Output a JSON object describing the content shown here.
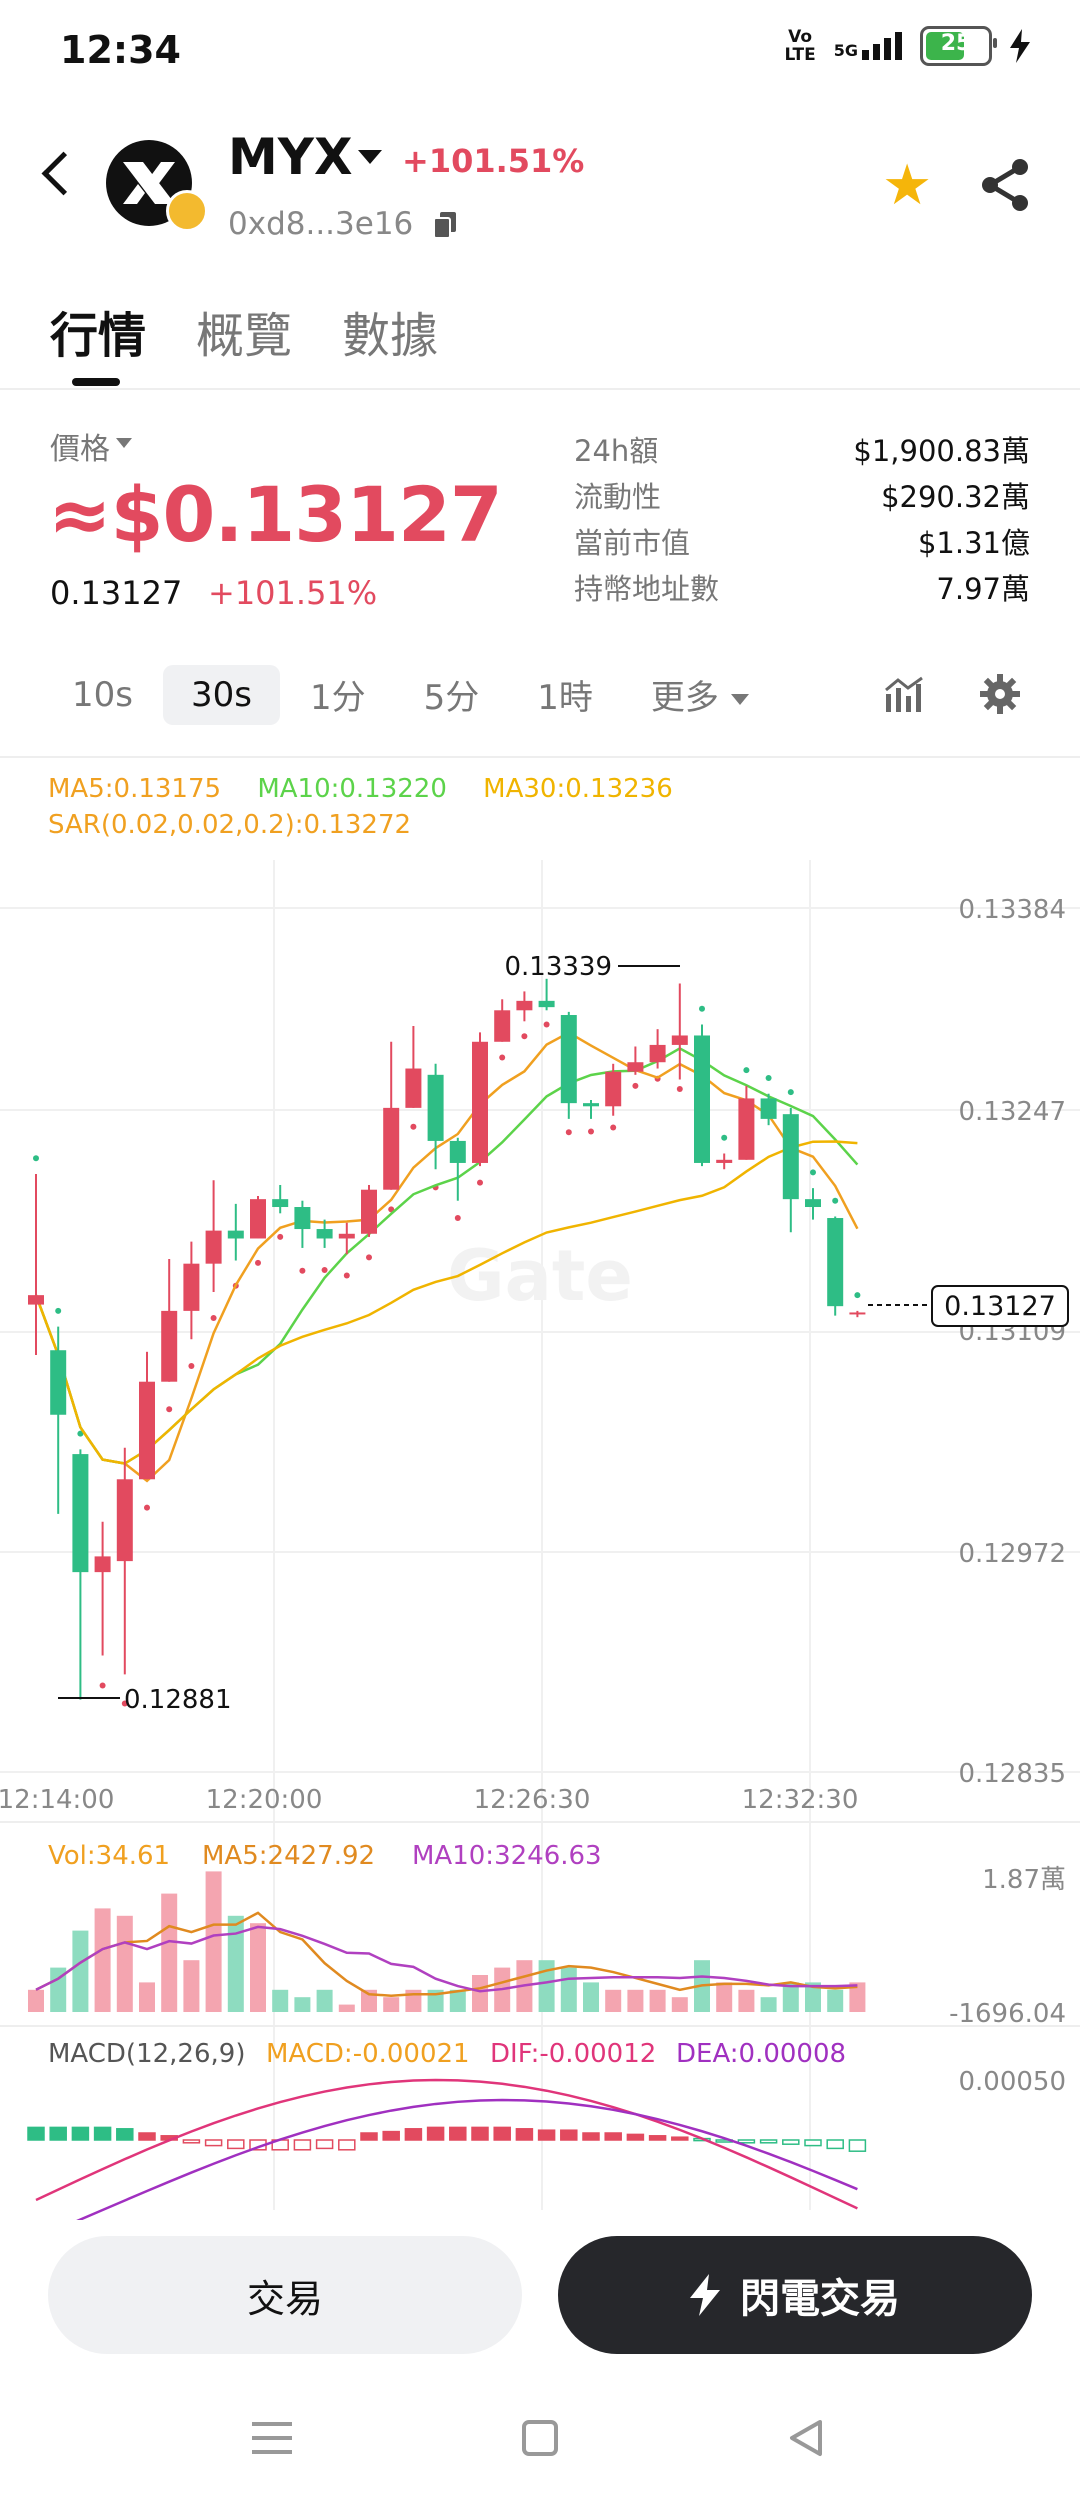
{
  "status": {
    "time": "12:34",
    "volte": "Vo\nLTE",
    "net": "5G",
    "battery": "25"
  },
  "header": {
    "symbol": "MYX",
    "change": "+101.51%",
    "address": "0xd8...3e16"
  },
  "tabs": [
    "行情",
    "概覽",
    "數據"
  ],
  "price": {
    "label": "價格",
    "big": "≈$0.13127",
    "raw": "0.13127",
    "change": "+101.51%"
  },
  "stats": [
    {
      "k": "24h額",
      "v": "$1,900.83萬"
    },
    {
      "k": "流動性",
      "v": "$290.32萬"
    },
    {
      "k": "當前市值",
      "v": "$1.31億"
    },
    {
      "k": "持幣地址數",
      "v": "7.97萬"
    }
  ],
  "timeframes": [
    "10s",
    "30s",
    "1分",
    "5分",
    "1時",
    "更多"
  ],
  "indicators": {
    "ma5": "MA5:0.13175",
    "ma10": "MA10:0.13220",
    "ma30": "MA30:0.13236",
    "sar": "SAR(0.02,0.02,0.2):0.13272"
  },
  "colors": {
    "up": "#e24a5f",
    "down": "#2ebd85",
    "ma5": "#f0a020",
    "ma10": "#5cd34a",
    "ma30": "#f0b400",
    "sar": "#e24a5f",
    "accent_star": "#f5b50a"
  },
  "chart_data": {
    "type": "candlestick",
    "watermark": "Gate",
    "y_ticks": [
      "0.13384",
      "0.13247",
      "0.13109",
      "0.12972",
      "0.12835"
    ],
    "x_ticks": [
      "12:14:00",
      "12:20:00",
      "12:26:30",
      "12:32:30"
    ],
    "last_price_tag": "0.13127",
    "high_label": "0.13339",
    "low_label": "0.12881",
    "candles": [
      {
        "o": 0.13132,
        "c": 0.13138,
        "h": 0.13215,
        "l": 0.131
      },
      {
        "o": 0.13103,
        "c": 0.13062,
        "h": 0.13118,
        "l": 0.12999
      },
      {
        "o": 0.13037,
        "c": 0.12962,
        "h": 0.1304,
        "l": 0.12881
      },
      {
        "o": 0.12962,
        "c": 0.12972,
        "h": 0.12994,
        "l": 0.12909
      },
      {
        "o": 0.12969,
        "c": 0.13021,
        "h": 0.13041,
        "l": 0.12897
      },
      {
        "o": 0.13021,
        "c": 0.13083,
        "h": 0.13102,
        "l": 0.13021
      },
      {
        "o": 0.13083,
        "c": 0.13128,
        "h": 0.13161,
        "l": 0.13083
      },
      {
        "o": 0.13128,
        "c": 0.13158,
        "h": 0.13172,
        "l": 0.1311
      },
      {
        "o": 0.13158,
        "c": 0.13179,
        "h": 0.13211,
        "l": 0.1314
      },
      {
        "o": 0.13179,
        "c": 0.13174,
        "h": 0.13196,
        "l": 0.1316
      },
      {
        "o": 0.13174,
        "c": 0.13199,
        "h": 0.13201,
        "l": 0.13174
      },
      {
        "o": 0.13199,
        "c": 0.13194,
        "h": 0.13208,
        "l": 0.1319
      },
      {
        "o": 0.13194,
        "c": 0.1318,
        "h": 0.13198,
        "l": 0.13168
      },
      {
        "o": 0.1318,
        "c": 0.13174,
        "h": 0.13186,
        "l": 0.13168
      },
      {
        "o": 0.13174,
        "c": 0.13177,
        "h": 0.13184,
        "l": 0.13164
      },
      {
        "o": 0.13177,
        "c": 0.13205,
        "h": 0.13208,
        "l": 0.13175
      },
      {
        "o": 0.13205,
        "c": 0.13257,
        "h": 0.13299,
        "l": 0.13205
      },
      {
        "o": 0.13257,
        "c": 0.13282,
        "h": 0.13309,
        "l": 0.13257
      },
      {
        "o": 0.13278,
        "c": 0.13236,
        "h": 0.13285,
        "l": 0.13218
      },
      {
        "o": 0.13236,
        "c": 0.13222,
        "h": 0.13238,
        "l": 0.13198
      },
      {
        "o": 0.13222,
        "c": 0.13299,
        "h": 0.13305,
        "l": 0.1322
      },
      {
        "o": 0.13299,
        "c": 0.13319,
        "h": 0.13326,
        "l": 0.13299
      },
      {
        "o": 0.13319,
        "c": 0.13325,
        "h": 0.13331,
        "l": 0.13312
      },
      {
        "o": 0.13325,
        "c": 0.13321,
        "h": 0.13339,
        "l": 0.13319
      },
      {
        "o": 0.13316,
        "c": 0.1326,
        "h": 0.13318,
        "l": 0.1325
      },
      {
        "o": 0.1326,
        "c": 0.13258,
        "h": 0.13262,
        "l": 0.1325
      },
      {
        "o": 0.13258,
        "c": 0.1328,
        "h": 0.13285,
        "l": 0.13252
      },
      {
        "o": 0.1328,
        "c": 0.13286,
        "h": 0.13296,
        "l": 0.13278
      },
      {
        "o": 0.13286,
        "c": 0.13297,
        "h": 0.13307,
        "l": 0.13282
      },
      {
        "o": 0.13297,
        "c": 0.13303,
        "h": 0.13336,
        "l": 0.13275
      },
      {
        "o": 0.13303,
        "c": 0.13222,
        "h": 0.1331,
        "l": 0.1322
      },
      {
        "o": 0.13222,
        "c": 0.13224,
        "h": 0.13228,
        "l": 0.13218
      },
      {
        "o": 0.13224,
        "c": 0.13263,
        "h": 0.13271,
        "l": 0.13224
      },
      {
        "o": 0.13263,
        "c": 0.1325,
        "h": 0.13266,
        "l": 0.13246
      },
      {
        "o": 0.13253,
        "c": 0.13199,
        "h": 0.13257,
        "l": 0.13178
      },
      {
        "o": 0.13199,
        "c": 0.13194,
        "h": 0.13206,
        "l": 0.13186
      },
      {
        "o": 0.13187,
        "c": 0.13131,
        "h": 0.13188,
        "l": 0.13125
      },
      {
        "o": 0.13127,
        "c": 0.13127,
        "h": 0.13128,
        "l": 0.13124
      }
    ],
    "volume_panel": {
      "vol": "Vol:34.61",
      "ma5": "MA5:2427.92",
      "ma10": "MA10:3246.63",
      "y_top": "1.87萬",
      "y_bottom": "-1696.04",
      "values": [
        3,
        6,
        11,
        14,
        13,
        4,
        16,
        7,
        19,
        13,
        12,
        3,
        2,
        3,
        1,
        3,
        2,
        3,
        3,
        3,
        5,
        6,
        7,
        7,
        6,
        4,
        3,
        3,
        3,
        2,
        7,
        4,
        3,
        2,
        4,
        4,
        3,
        4
      ]
    },
    "macd_panel": {
      "title": "MACD(12,26,9)",
      "macd": "MACD:-0.00021",
      "dif": "DIF:-0.00012",
      "dea": "DEA:0.00008",
      "y_top": "0.00050",
      "values": [
        -0.9,
        -0.9,
        -0.9,
        -0.9,
        -0.8,
        -0.5,
        -0.3,
        0.2,
        0.4,
        0.6,
        0.7,
        0.7,
        0.7,
        0.6,
        0.7,
        -0.5,
        -0.6,
        -0.8,
        -0.9,
        -0.9,
        -0.9,
        -0.9,
        -0.8,
        -0.7,
        -0.7,
        -0.5,
        -0.5,
        -0.4,
        -0.3,
        -0.2,
        -0.1,
        0.1,
        0.2,
        0.2,
        0.3,
        0.4,
        0.6,
        0.8
      ]
    }
  },
  "buttons": {
    "trade": "交易",
    "flash": "閃電交易"
  }
}
